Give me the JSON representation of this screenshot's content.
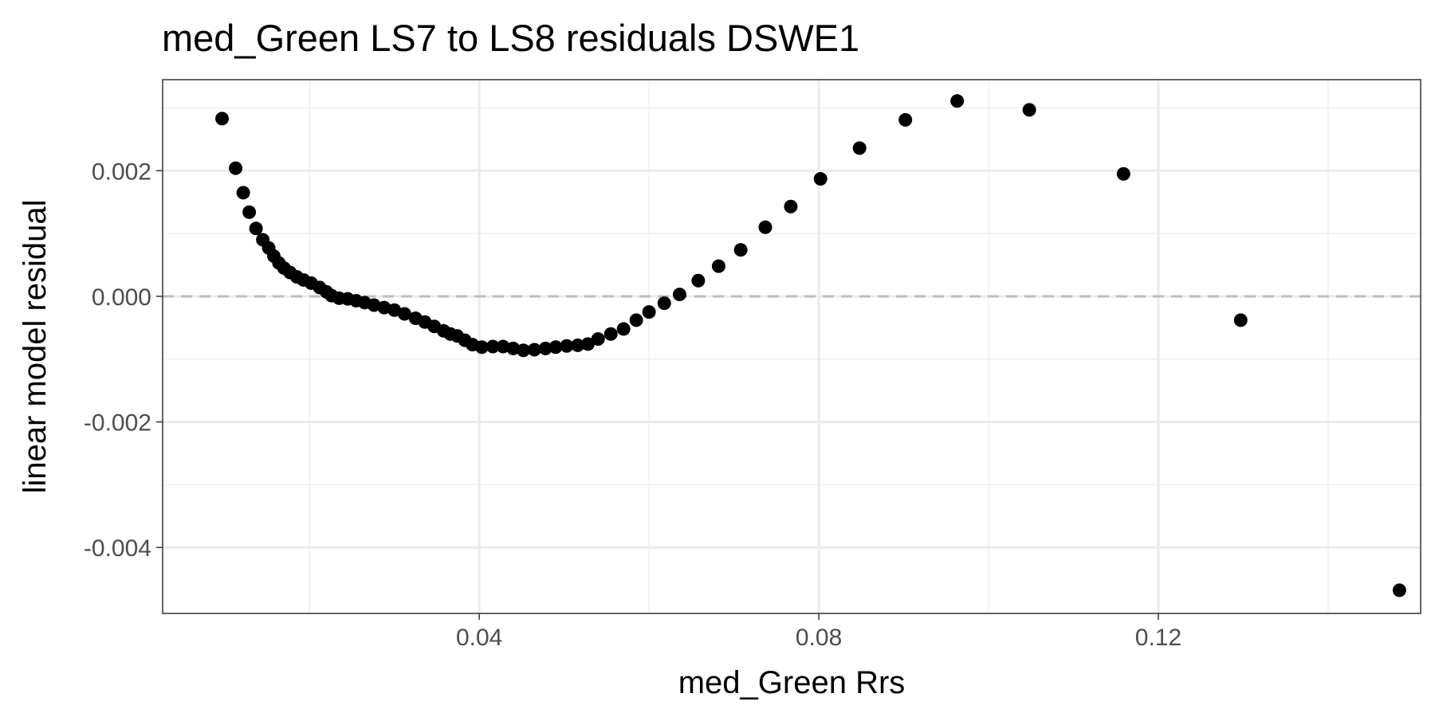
{
  "chart_data": {
    "type": "scatter",
    "title": "med_Green LS7 to LS8 residuals DSWE1",
    "xlabel": "med_Green  Rrs",
    "ylabel": "linear model residual",
    "xlim": [
      0.0027,
      0.1509
    ],
    "ylim": [
      -0.00505,
      0.00345
    ],
    "x_ticks": [
      0.04,
      0.08,
      0.12
    ],
    "x_tick_labels": [
      "0.04",
      "0.08",
      "0.12"
    ],
    "x_minor_ticks": [
      0.02,
      0.06,
      0.1,
      0.14
    ],
    "y_ticks": [
      0.002,
      0.0,
      -0.002,
      -0.004
    ],
    "y_tick_labels": [
      "0.002",
      "0.000",
      "-0.002",
      "-0.004"
    ],
    "y_minor_ticks": [
      0.003,
      0.001,
      -0.001,
      -0.003
    ],
    "reference_line": {
      "y": 0,
      "style": "dashed",
      "color": "#bdbdbd"
    },
    "grid": true,
    "theme": "bw",
    "point_color": "#000000",
    "points": [
      [
        0.0097,
        0.00283
      ],
      [
        0.0113,
        0.00204
      ],
      [
        0.0122,
        0.00165
      ],
      [
        0.0129,
        0.00134
      ],
      [
        0.0137,
        0.00108
      ],
      [
        0.0145,
        0.0009
      ],
      [
        0.0152,
        0.00077
      ],
      [
        0.0158,
        0.00064
      ],
      [
        0.0164,
        0.00053
      ],
      [
        0.017,
        0.00045
      ],
      [
        0.0177,
        0.00038
      ],
      [
        0.0185,
        0.00031
      ],
      [
        0.0193,
        0.00026
      ],
      [
        0.0202,
        0.00021
      ],
      [
        0.0212,
        0.00014
      ],
      [
        0.022,
        7e-05
      ],
      [
        0.0226,
        1e-05
      ],
      [
        0.0235,
        -3e-05
      ],
      [
        0.0245,
        -4e-05
      ],
      [
        0.0255,
        -7e-05
      ],
      [
        0.0265,
        -0.0001
      ],
      [
        0.0276,
        -0.00014
      ],
      [
        0.0288,
        -0.00018
      ],
      [
        0.03,
        -0.00022
      ],
      [
        0.0312,
        -0.00028
      ],
      [
        0.0325,
        -0.00035
      ],
      [
        0.0336,
        -0.00041
      ],
      [
        0.0347,
        -0.00048
      ],
      [
        0.0358,
        -0.00055
      ],
      [
        0.0366,
        -0.0006
      ],
      [
        0.0374,
        -0.00063
      ],
      [
        0.0383,
        -0.0007
      ],
      [
        0.0392,
        -0.00077
      ],
      [
        0.0403,
        -0.00081
      ],
      [
        0.0416,
        -0.0008
      ],
      [
        0.0428,
        -0.0008
      ],
      [
        0.044,
        -0.00083
      ],
      [
        0.0452,
        -0.00086
      ],
      [
        0.0465,
        -0.00085
      ],
      [
        0.0478,
        -0.00083
      ],
      [
        0.049,
        -0.00081
      ],
      [
        0.0503,
        -0.00079
      ],
      [
        0.0516,
        -0.00078
      ],
      [
        0.0528,
        -0.00076
      ],
      [
        0.054,
        -0.00068
      ],
      [
        0.0555,
        -0.0006
      ],
      [
        0.057,
        -0.00052
      ],
      [
        0.0585,
        -0.00038
      ],
      [
        0.06,
        -0.00025
      ],
      [
        0.0618,
        -0.00011
      ],
      [
        0.0636,
        3e-05
      ],
      [
        0.0658,
        0.00025
      ],
      [
        0.0682,
        0.00048
      ],
      [
        0.0708,
        0.00074
      ],
      [
        0.0737,
        0.0011
      ],
      [
        0.0767,
        0.00143
      ],
      [
        0.0802,
        0.00187
      ],
      [
        0.0848,
        0.00236
      ],
      [
        0.0902,
        0.00281
      ],
      [
        0.0963,
        0.00311
      ],
      [
        0.1048,
        0.00297
      ],
      [
        0.1159,
        0.00195
      ],
      [
        0.1297,
        -0.00038
      ],
      [
        0.1484,
        -0.00468
      ]
    ]
  }
}
